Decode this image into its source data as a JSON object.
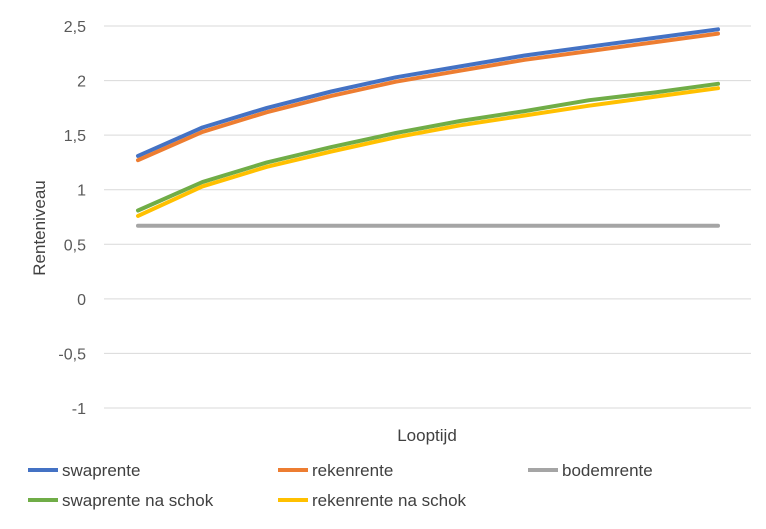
{
  "chart_data": {
    "type": "line",
    "title": "",
    "xlabel": "Looptijd",
    "ylabel": "Renteniveau",
    "ylim": [
      -1,
      2.5
    ],
    "yticks": [
      2.5,
      2,
      1.5,
      1,
      0.5,
      0,
      -0.5,
      -1
    ],
    "ytick_labels": [
      "2,5",
      "2",
      "1,5",
      "1",
      "0,5",
      "0",
      "-0,5",
      "-1"
    ],
    "grid": true,
    "legend_position": "bottom",
    "x": [
      1,
      2,
      3,
      4,
      5,
      6,
      7,
      8,
      9,
      10
    ],
    "series": [
      {
        "name": "swaprente",
        "color": "#4472C4",
        "values": [
          1.31,
          1.57,
          1.75,
          1.9,
          2.03,
          2.13,
          2.23,
          2.31,
          2.39,
          2.47
        ]
      },
      {
        "name": "rekenrente",
        "color": "#ED7D31",
        "values": [
          1.27,
          1.53,
          1.71,
          1.86,
          1.99,
          2.09,
          2.19,
          2.27,
          2.35,
          2.43
        ]
      },
      {
        "name": "bodemrente",
        "color": "#A5A5A5",
        "values": [
          0.67,
          0.67,
          0.67,
          0.67,
          0.67,
          0.67,
          0.67,
          0.67,
          0.67,
          0.67
        ]
      },
      {
        "name": "swaprente na schok",
        "color": "#70AD47",
        "values": [
          0.81,
          1.07,
          1.25,
          1.39,
          1.52,
          1.63,
          1.72,
          1.82,
          1.89,
          1.97
        ]
      },
      {
        "name": "rekenrente na schok",
        "color": "#FFC000",
        "values": [
          0.76,
          1.03,
          1.21,
          1.35,
          1.48,
          1.59,
          1.68,
          1.77,
          1.85,
          1.93
        ]
      }
    ]
  }
}
